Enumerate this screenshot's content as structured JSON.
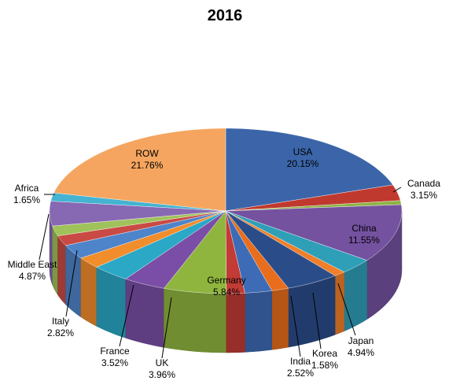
{
  "chart_data": {
    "type": "pie",
    "title": "2016",
    "legend": "none",
    "slices": [
      {
        "name": "USA",
        "label": "20.15%",
        "value": 20.15,
        "color": "#3b65a8"
      },
      {
        "name": "Canada",
        "label": "3.15%",
        "value": 3.15,
        "color": "#c0392f"
      },
      {
        "name": "",
        "label": "",
        "value": 0.8,
        "color": "#8fb346"
      },
      {
        "name": "China",
        "label": "11.55%",
        "value": 11.55,
        "color": "#7452a0"
      },
      {
        "name": "",
        "label": "",
        "value": 3.1,
        "color": "#2f9fb8"
      },
      {
        "name": "",
        "label": "",
        "value": 1.1,
        "color": "#f07f2a"
      },
      {
        "name": "Japan",
        "label": "4.94%",
        "value": 4.94,
        "color": "#2a4d8a"
      },
      {
        "name": "Korea",
        "label": "1.58%",
        "value": 1.58,
        "color": "#e86d1c"
      },
      {
        "name": "India",
        "label": "2.52%",
        "value": 2.52,
        "color": "#3e6bb5"
      },
      {
        "name": "",
        "label": "",
        "value": 1.7,
        "color": "#c23b36"
      },
      {
        "name": "Germany",
        "label": "5.84%",
        "value": 5.84,
        "color": "#8fb53f"
      },
      {
        "name": "UK",
        "label": "3.96%",
        "value": 3.96,
        "color": "#7a4ea6"
      },
      {
        "name": "France",
        "label": "3.52%",
        "value": 3.52,
        "color": "#2aa8c6"
      },
      {
        "name": "",
        "label": "",
        "value": 2.3,
        "color": "#f28d2c"
      },
      {
        "name": "Italy",
        "label": "2.82%",
        "value": 2.82,
        "color": "#4e84c9"
      },
      {
        "name": "",
        "label": "",
        "value": 2.0,
        "color": "#c94a44"
      },
      {
        "name": "",
        "label": "",
        "value": 2.0,
        "color": "#9fc25a"
      },
      {
        "name": "Middle East",
        "label": "4.87%",
        "value": 4.87,
        "color": "#8768b3"
      },
      {
        "name": "Africa",
        "label": "1.65%",
        "value": 1.65,
        "color": "#45b3d1"
      },
      {
        "name": "ROW",
        "label": "21.76%",
        "value": 21.76,
        "color": "#f5a55f"
      }
    ]
  }
}
